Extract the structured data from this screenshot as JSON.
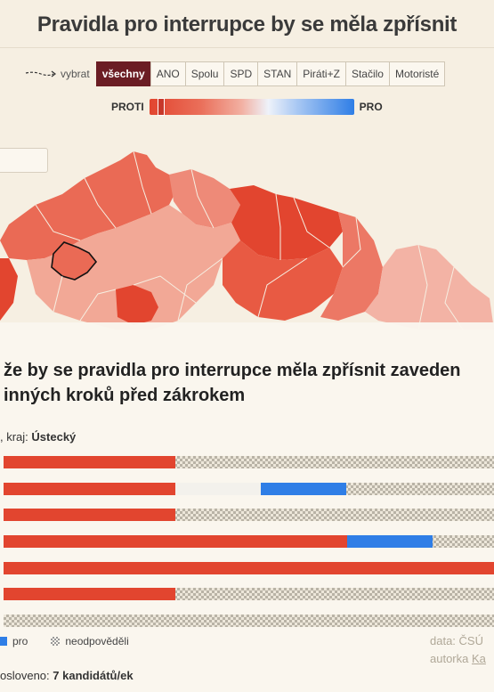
{
  "title": "Pravidla pro interrupce by se měla zpřísnit",
  "filter": {
    "pick_label": "vybrat",
    "chips": [
      "všechny",
      "ANO",
      "Spolu",
      "SPD",
      "STAN",
      "Piráti+Z",
      "Stačilo",
      "Motoristé"
    ],
    "active": "všechny"
  },
  "scale": {
    "left_label": "PROTI",
    "right_label": "PRO"
  },
  "panel": {
    "title_line1": " že by se pravidla pro interrupce měla zpřísnit zaveden",
    "title_line2": "inných kroků před zákrokem",
    "region_prefix": ", kraj: ",
    "region_name": "Ústecký",
    "rows": [
      {
        "proti": 0.344,
        "neutral": 0,
        "pro": 0
      },
      {
        "proti": 0.344,
        "neutral": 0.172,
        "pro": 0.172
      },
      {
        "proti": 0.344,
        "neutral": 0,
        "pro": 0
      },
      {
        "proti": 0.689,
        "neutral": 0,
        "pro": 0.172
      },
      {
        "proti": 1.0,
        "neutral": 0,
        "pro": 0
      },
      {
        "proti": 0.344,
        "neutral": 0,
        "pro": 0
      },
      {
        "proti": 0,
        "neutral": 0,
        "pro": 0
      }
    ]
  },
  "legend": {
    "pro": "pro",
    "neodpovedeli": "neodpověděli"
  },
  "credits": {
    "data": "data: ČSÚ",
    "author_prefix": "autorka ",
    "author_name": "Ka"
  },
  "footer": {
    "prefix": "osloveno: ",
    "count": "7 kandidátů/ek"
  },
  "colors": {
    "proti": "#e2452f",
    "pro": "#2f7ee6",
    "active_chip": "#6b1d24"
  }
}
